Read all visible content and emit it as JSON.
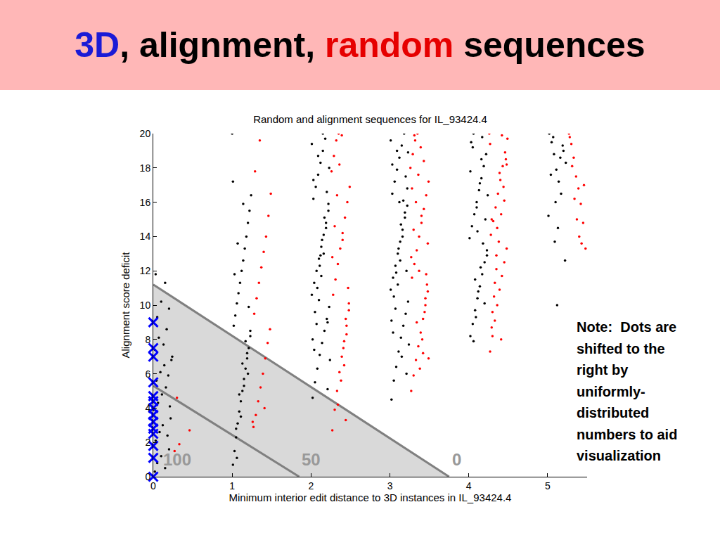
{
  "slide": {
    "title_parts": [
      {
        "text": "3D",
        "color": "#1a1ad6"
      },
      {
        "text": ", alignment, ",
        "color": "#000000"
      },
      {
        "text": "random",
        "color": "#e60000"
      },
      {
        "text": " sequences",
        "color": "#000000"
      }
    ],
    "note": "Note:  Dots are shifted to the right by uniformly-distributed numbers to aid visualization"
  },
  "chart_data": {
    "type": "scatter",
    "title": "Random and alignment sequences for IL_93424.4",
    "x_label": "Minimum interior edit distance to 3D instances in IL_93424.4",
    "y_label": "Alignment score deficit",
    "xlim": [
      0,
      5.5
    ],
    "xticks": [
      0,
      1,
      2,
      3,
      4,
      5
    ],
    "ylim": [
      0,
      20
    ],
    "yticks": [
      0,
      2,
      4,
      6,
      8,
      10,
      12,
      14,
      16,
      18,
      20
    ],
    "grid": false,
    "shaded_region": {
      "color": "#d9d9d9",
      "x": [
        0,
        0,
        3.75
      ],
      "y": [
        0,
        11.2,
        0
      ]
    },
    "lines": [
      {
        "color": "#808080",
        "x": [
          0,
          1.85
        ],
        "y": [
          5.3,
          0
        ]
      },
      {
        "color": "#808080",
        "x": [
          0,
          3.75
        ],
        "y": [
          11.2,
          0
        ]
      }
    ],
    "annotations": [
      {
        "text": "100",
        "x": 0.3,
        "y": 1.0,
        "color": "#999999"
      },
      {
        "text": "50",
        "x": 2.0,
        "y": 1.0,
        "color": "#999999"
      },
      {
        "text": "0",
        "x": 3.85,
        "y": 1.0,
        "color": "#999999"
      }
    ],
    "series": [
      {
        "name": "alignment",
        "color": "#000000",
        "marker": "dot",
        "x": [
          0.02,
          0.05,
          0.1,
          0.15,
          0.2,
          0.03,
          0.08,
          0.12,
          0.18,
          0.22,
          0.01,
          0.06,
          0.11,
          0.16,
          0.21,
          0.04,
          0.09,
          0.14,
          0.19,
          0.24,
          0.02,
          0.07,
          0.13,
          0.17,
          0.23,
          0.05,
          0.1,
          0.03,
          0.15,
          0.2,
          1.01,
          1.03,
          1.05,
          1.07,
          1.09,
          1.11,
          1.13,
          1.15,
          1.17,
          1.19,
          1.21,
          1.23,
          1.02,
          1.04,
          1.06,
          1.08,
          1.1,
          1.12,
          1.14,
          1.16,
          1.18,
          1.2,
          1.22,
          1.24,
          1.01,
          1.05,
          1.09,
          1.13,
          1.17,
          1.21,
          1.03,
          1.07,
          1.11,
          1.15,
          1.19,
          1.23,
          1.06,
          1.14,
          1.0,
          1.2,
          2.02,
          2.05,
          2.08,
          2.11,
          2.14,
          2.17,
          2.2,
          2.23,
          2.01,
          2.04,
          2.07,
          2.1,
          2.13,
          2.16,
          2.19,
          2.22,
          2.03,
          2.06,
          2.09,
          2.12,
          2.15,
          2.18,
          2.21,
          2.24,
          2.02,
          2.05,
          2.08,
          2.11,
          2.14,
          2.17,
          2.2,
          2.23,
          2.01,
          2.04,
          2.07,
          2.1,
          2.13,
          2.16,
          2.19,
          2.22,
          2.03,
          2.09,
          2.15,
          2.21,
          2.12,
          3.02,
          3.05,
          3.08,
          3.11,
          3.14,
          3.17,
          3.2,
          3.23,
          3.01,
          3.04,
          3.07,
          3.1,
          3.13,
          3.16,
          3.19,
          3.22,
          3.03,
          3.06,
          3.09,
          3.12,
          3.15,
          3.18,
          3.21,
          3.24,
          3.02,
          3.05,
          3.08,
          3.11,
          3.14,
          3.17,
          3.2,
          3.23,
          3.01,
          3.04,
          3.07,
          3.1,
          3.13,
          3.16,
          3.19,
          3.22,
          3.03,
          3.09,
          3.15,
          3.21,
          3.12,
          4.02,
          4.05,
          4.08,
          4.11,
          4.14,
          4.17,
          4.2,
          4.23,
          4.01,
          4.04,
          4.07,
          4.1,
          4.13,
          4.16,
          4.19,
          4.22,
          4.03,
          4.06,
          4.09,
          4.12,
          4.15,
          4.18,
          4.21,
          4.24,
          4.02,
          4.05,
          4.08,
          4.11,
          4.14,
          4.17,
          4.2,
          4.23,
          4.1,
          4.16,
          4.06,
          5.02,
          5.05,
          5.08,
          5.11,
          5.14,
          5.17,
          5.2,
          5.23,
          5.01,
          5.04,
          5.07,
          5.1,
          5.13,
          5.16,
          5.19,
          5.22,
          5.12,
          5.09
        ],
        "values": [
          0.3,
          0.8,
          1.2,
          0.5,
          1.6,
          2.1,
          2.6,
          3.0,
          2.4,
          3.4,
          3.9,
          4.3,
          4.8,
          5.2,
          4.1,
          5.6,
          6.1,
          6.5,
          5.9,
          7.0,
          7.4,
          8.1,
          7.7,
          8.6,
          6.8,
          9.3,
          10.2,
          11.8,
          11.3,
          9.8,
          0.7,
          1.5,
          2.3,
          3.1,
          3.8,
          4.4,
          5.0,
          5.7,
          6.3,
          6.9,
          7.5,
          8.2,
          8.8,
          9.4,
          10.1,
          10.7,
          11.3,
          12.0,
          12.6,
          13.3,
          14.0,
          14.8,
          15.5,
          16.4,
          17.2,
          2.8,
          4.8,
          6.6,
          7.9,
          9.9,
          11.8,
          13.6,
          3.5,
          5.3,
          7.2,
          8.5,
          1.1,
          15.9,
          20.0,
          6.0,
          4.6,
          5.5,
          6.3,
          7.1,
          7.8,
          8.5,
          9.2,
          9.9,
          10.6,
          11.3,
          12.0,
          12.7,
          13.4,
          14.1,
          14.8,
          15.5,
          16.2,
          16.9,
          17.6,
          18.3,
          19.0,
          19.7,
          5.1,
          6.8,
          8.0,
          9.6,
          11.0,
          12.3,
          13.8,
          15.1,
          16.6,
          18.0,
          19.4,
          7.4,
          8.9,
          10.3,
          11.7,
          13.0,
          14.5,
          15.9,
          17.3,
          18.7,
          20.0,
          9.0,
          12.9,
          4.5,
          5.6,
          6.4,
          7.3,
          8.1,
          8.8,
          9.5,
          10.2,
          10.9,
          11.6,
          12.3,
          13.0,
          13.7,
          14.4,
          15.1,
          15.8,
          16.5,
          17.2,
          17.9,
          18.6,
          19.3,
          20.0,
          6.0,
          7.7,
          9.1,
          10.5,
          11.9,
          13.3,
          14.7,
          16.1,
          17.5,
          18.9,
          19.6,
          8.4,
          9.8,
          11.2,
          12.6,
          14.0,
          15.4,
          16.8,
          18.2,
          19.0,
          7.0,
          12.0,
          16.0,
          8.2,
          8.9,
          9.7,
          10.4,
          11.1,
          11.8,
          12.5,
          13.2,
          13.9,
          14.6,
          15.3,
          16.0,
          16.7,
          17.4,
          18.1,
          18.8,
          19.5,
          20.0,
          9.3,
          10.8,
          12.2,
          13.6,
          15.0,
          16.4,
          17.8,
          19.2,
          11.5,
          14.3,
          17.1,
          19.8,
          10.1,
          12.9,
          15.7,
          18.5,
          7.9,
          20.0,
          19.5,
          18.8,
          17.9,
          17.2,
          16.5,
          19.0,
          18.3,
          15.2,
          17.6,
          19.8,
          16.0,
          14.5,
          18.6,
          19.3,
          12.6,
          10.0,
          13.7
        ]
      },
      {
        "name": "random",
        "color": "#ff0000",
        "marker": "dot",
        "x": [
          0.3,
          0.33,
          0.46,
          0.27,
          1.27,
          1.3,
          1.33,
          1.36,
          1.39,
          1.42,
          1.45,
          1.48,
          1.28,
          1.31,
          1.34,
          1.37,
          1.4,
          1.43,
          1.46,
          1.49,
          1.29,
          1.35,
          1.41,
          1.26,
          2.27,
          2.3,
          2.33,
          2.36,
          2.39,
          2.42,
          2.45,
          2.48,
          2.28,
          2.31,
          2.34,
          2.37,
          2.4,
          2.43,
          2.46,
          2.49,
          2.26,
          2.29,
          2.32,
          2.35,
          2.38,
          2.41,
          2.44,
          2.47,
          2.27,
          2.3,
          2.33,
          2.36,
          2.39,
          2.42,
          2.45,
          2.48,
          2.4,
          2.34,
          2.44,
          3.27,
          3.3,
          3.33,
          3.36,
          3.39,
          3.42,
          3.45,
          3.48,
          3.28,
          3.31,
          3.34,
          3.37,
          3.4,
          3.43,
          3.46,
          3.49,
          3.26,
          3.29,
          3.32,
          3.35,
          3.38,
          3.41,
          3.44,
          3.47,
          3.27,
          3.3,
          3.33,
          3.36,
          3.39,
          3.42,
          3.45,
          3.48,
          3.28,
          3.31,
          3.34,
          3.37,
          3.4,
          3.43,
          3.46,
          3.49,
          4.27,
          4.3,
          4.33,
          4.36,
          4.39,
          4.42,
          4.45,
          4.48,
          4.28,
          4.31,
          4.34,
          4.37,
          4.4,
          4.43,
          4.46,
          4.49,
          4.26,
          4.29,
          4.32,
          4.35,
          4.38,
          4.41,
          4.44,
          4.47,
          4.27,
          4.3,
          4.33,
          4.36,
          4.39,
          4.42,
          4.45,
          4.48,
          4.35,
          4.29,
          4.41,
          5.27,
          5.3,
          5.33,
          5.36,
          5.39,
          5.42,
          5.45,
          5.48,
          5.28,
          5.31,
          5.34,
          5.37,
          5.4,
          5.43,
          5.46
        ],
        "values": [
          4.6,
          1.9,
          2.7,
          1.5,
          2.9,
          3.6,
          4.4,
          5.2,
          6.0,
          6.9,
          7.8,
          8.6,
          9.5,
          10.4,
          11.3,
          12.2,
          13.1,
          14.0,
          15.2,
          16.5,
          17.8,
          19.6,
          4.0,
          3.2,
          2.7,
          3.9,
          5.0,
          6.1,
          7.0,
          7.9,
          8.8,
          9.7,
          10.6,
          11.5,
          12.4,
          13.3,
          14.2,
          15.1,
          16.0,
          16.9,
          17.8,
          18.7,
          19.6,
          20.0,
          5.6,
          7.5,
          9.2,
          11.0,
          12.8,
          14.6,
          16.4,
          18.2,
          19.9,
          6.5,
          8.3,
          10.1,
          13.8,
          4.2,
          3.3,
          5.0,
          5.9,
          6.8,
          7.6,
          8.4,
          9.2,
          10.0,
          10.8,
          11.6,
          12.4,
          13.2,
          14.0,
          14.8,
          15.6,
          16.4,
          17.2,
          18.0,
          18.8,
          19.6,
          20.0,
          6.3,
          8.0,
          9.6,
          11.2,
          12.8,
          14.4,
          16.0,
          17.6,
          19.2,
          7.2,
          10.4,
          13.6,
          16.8,
          19.9,
          9.0,
          12.0,
          15.2,
          18.4,
          11.8,
          6.9,
          7.3,
          8.2,
          9.1,
          10.0,
          10.9,
          11.7,
          12.5,
          13.3,
          14.1,
          14.9,
          15.7,
          16.5,
          17.3,
          18.1,
          18.9,
          19.7,
          20.0,
          8.7,
          10.5,
          12.1,
          13.7,
          15.3,
          16.9,
          18.5,
          19.4,
          9.6,
          11.3,
          14.5,
          17.7,
          19.9,
          16.1,
          18.2,
          12.9,
          15.0,
          8.0,
          20.0,
          19.4,
          18.6,
          17.5,
          16.8,
          15.9,
          14.8,
          13.3,
          19.8,
          18.1,
          16.2,
          15.0,
          14.0,
          13.6,
          17.0
        ]
      },
      {
        "name": "3D",
        "color": "#0000ff",
        "marker": "x",
        "x": [
          0,
          0,
          0,
          0,
          0,
          0,
          0,
          0,
          0,
          0,
          0,
          0,
          0,
          0
        ],
        "values": [
          9.0,
          7.5,
          7.0,
          5.5,
          4.7,
          4.4,
          4.0,
          3.6,
          3.2,
          2.8,
          2.5,
          1.8,
          1.1,
          0.0
        ]
      }
    ]
  }
}
